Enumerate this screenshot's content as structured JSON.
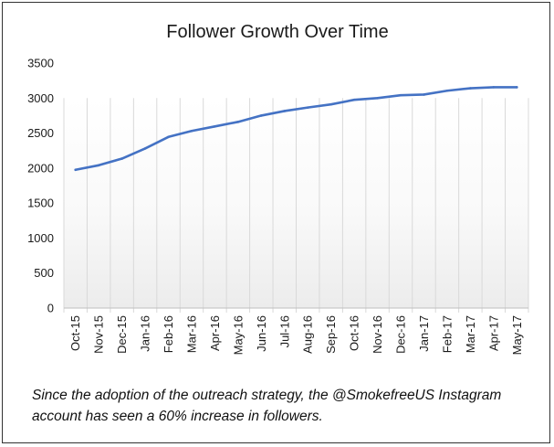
{
  "chart_data": {
    "type": "line",
    "title": "Follower Growth Over Time",
    "xlabel": "",
    "ylabel": "",
    "categories": [
      "Oct-15",
      "Nov-15",
      "Dec-15",
      "Jan-16",
      "Feb-16",
      "Mar-16",
      "Apr-16",
      "May-16",
      "Jun-16",
      "Jul-16",
      "Aug-16",
      "Sep-16",
      "Oct-16",
      "Nov-16",
      "Dec-16",
      "Jan-17",
      "Feb-17",
      "Mar-17",
      "Apr-17",
      "May-17"
    ],
    "series": [
      {
        "values": [
          1975,
          2040,
          2135,
          2280,
          2445,
          2530,
          2595,
          2660,
          2750,
          2815,
          2865,
          2910,
          2975,
          3000,
          3040,
          3050,
          3105,
          3140,
          3155,
          3155
        ]
      }
    ],
    "ylim": [
      0,
      3500
    ],
    "yticks": [
      0,
      500,
      1000,
      1500,
      2000,
      2500,
      3000,
      3500
    ],
    "grid": "vertical",
    "legend": "none",
    "colors": {
      "line": "#4472C4",
      "grid": "#d9d9d9",
      "axis": "#bfbfbf"
    }
  },
  "caption": "Since the adoption of the outreach strategy, the @SmokefreeUS Instagram account has seen a 60% increase in followers."
}
